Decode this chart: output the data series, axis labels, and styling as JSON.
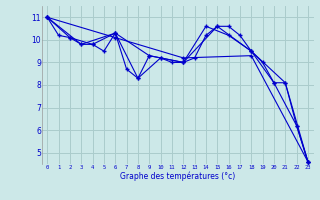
{
  "xlabel": "Graphe des températures (°c)",
  "bg_color": "#cce8e8",
  "grid_color": "#aacccc",
  "line_color": "#0000cc",
  "xlim": [
    -0.5,
    23.5
  ],
  "ylim": [
    4.5,
    11.5
  ],
  "yticks": [
    5,
    6,
    7,
    8,
    9,
    10,
    11
  ],
  "xticks": [
    0,
    1,
    2,
    3,
    4,
    5,
    6,
    7,
    8,
    9,
    10,
    11,
    12,
    13,
    14,
    15,
    16,
    17,
    18,
    19,
    20,
    21,
    22,
    23
  ],
  "series1_x": [
    0,
    1,
    2,
    3,
    4,
    5,
    6,
    7,
    8,
    9,
    10,
    11,
    12,
    13,
    14,
    15,
    16,
    17,
    18,
    19,
    20,
    21,
    22,
    23
  ],
  "series1_y": [
    11.0,
    10.2,
    10.1,
    9.8,
    9.8,
    9.5,
    10.3,
    8.7,
    8.3,
    9.3,
    9.2,
    9.0,
    9.0,
    9.2,
    10.2,
    10.6,
    10.6,
    10.2,
    9.5,
    9.0,
    8.1,
    8.1,
    6.2,
    4.6
  ],
  "series2_x": [
    0,
    2,
    4,
    6,
    8,
    10,
    12,
    14,
    16,
    18,
    20,
    22,
    23
  ],
  "series2_y": [
    11.0,
    10.1,
    9.8,
    10.3,
    8.3,
    9.2,
    9.0,
    10.6,
    10.2,
    9.5,
    8.1,
    6.2,
    4.6
  ],
  "series3_x": [
    0,
    3,
    6,
    9,
    12,
    15,
    18,
    21,
    23
  ],
  "series3_y": [
    11.0,
    9.8,
    10.3,
    9.3,
    9.0,
    10.6,
    9.5,
    8.1,
    4.6
  ],
  "series4_x": [
    0,
    6,
    12,
    18,
    23
  ],
  "series4_y": [
    11.0,
    10.1,
    9.2,
    9.3,
    4.6
  ]
}
